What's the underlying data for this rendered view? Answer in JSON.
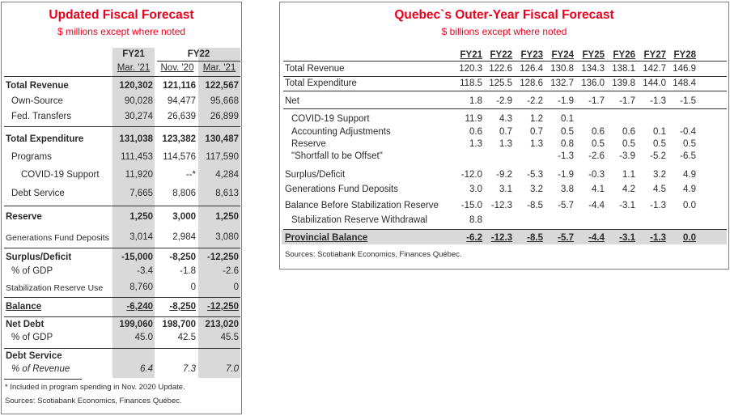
{
  "left": {
    "title": "Updated Fiscal Forecast",
    "subtitle": "$ millions except where noted",
    "group_fy21": "FY21",
    "group_fy22": "FY22",
    "cols": [
      "Mar. '21",
      "Nov. '20",
      "Mar. '21"
    ],
    "rows": [
      {
        "label": "Total Revenue",
        "values": [
          "120,302",
          "121,116",
          "122,567"
        ]
      },
      {
        "label": "Own-Source",
        "values": [
          "90,028",
          "94,477",
          "95,668"
        ]
      },
      {
        "label": "Fed. Transfers",
        "values": [
          "30,274",
          "26,639",
          "26,899"
        ]
      },
      {
        "label": "Total Expenditure",
        "values": [
          "131,038",
          "123,382",
          "130,487"
        ]
      },
      {
        "label": "Programs",
        "values": [
          "111,453",
          "114,576",
          "117,590"
        ]
      },
      {
        "label": "COVID-19 Support",
        "values": [
          "11,920",
          "--*",
          "4,284"
        ]
      },
      {
        "label": "Debt Service",
        "values": [
          "7,665",
          "8,806",
          "8,613"
        ]
      },
      {
        "label": "Reserve",
        "values": [
          "1,250",
          "3,000",
          "1,250"
        ]
      },
      {
        "label": "Generations Fund Deposits",
        "values": [
          "3,014",
          "2,984",
          "3,080"
        ]
      },
      {
        "label": "Surplus/Deficit",
        "values": [
          "-15,000",
          "-8,250",
          "-12,250"
        ]
      },
      {
        "label": "% of GDP",
        "values": [
          "-3.4",
          "-1.8",
          "-2.6"
        ]
      },
      {
        "label": "Stabilization Reserve Use",
        "values": [
          "8,760",
          "0",
          "0"
        ]
      },
      {
        "label": "Balance",
        "values": [
          "-6,240",
          "-8,250",
          "-12,250"
        ]
      },
      {
        "label": "Net Debt",
        "values": [
          "199,060",
          "198,700",
          "213,020"
        ]
      },
      {
        "label": "% of GDP",
        "values": [
          "45.0",
          "42.5",
          "45.5"
        ]
      },
      {
        "label": "Debt Service",
        "values": [
          "",
          "",
          ""
        ]
      },
      {
        "label": "% of Revenue",
        "values": [
          "6.4",
          "7.3",
          "7.0"
        ]
      }
    ],
    "footnote": "* Included in program spending in Nov. 2020 Update.",
    "sources": "Sources: Scotiabank Economics, Finances Québec."
  },
  "right": {
    "title": "Quebec`s Outer-Year Fiscal Forecast",
    "subtitle": "$ billions except where noted",
    "cols": [
      "FY21",
      "FY22",
      "FY23",
      "FY24",
      "FY25",
      "FY26",
      "FY27",
      "FY28"
    ],
    "rows": [
      {
        "label": "Total Revenue",
        "values": [
          "120.3",
          "122.6",
          "126.4",
          "130.8",
          "134.3",
          "138.1",
          "142.7",
          "146.9"
        ]
      },
      {
        "label": "Total Expenditure",
        "values": [
          "118.5",
          "125.5",
          "128.6",
          "132.7",
          "136.0",
          "139.8",
          "144.0",
          "148.4"
        ]
      },
      {
        "label": "Net",
        "values": [
          "1.8",
          "-2.9",
          "-2.2",
          "-1.9",
          "-1.7",
          "-1.7",
          "-1.3",
          "-1.5"
        ]
      },
      {
        "label": "COVID-19 Support",
        "values": [
          "11.9",
          "4.3",
          "1.2",
          "0.1",
          "",
          "",
          "",
          ""
        ]
      },
      {
        "label": "Accounting Adjustments",
        "values": [
          "0.6",
          "0.7",
          "0.7",
          "0.5",
          "0.6",
          "0.6",
          "0.1",
          "-0.4"
        ]
      },
      {
        "label": "Reserve",
        "values": [
          "1.3",
          "1.3",
          "1.3",
          "0.8",
          "0.5",
          "0.5",
          "0.5",
          "0.5"
        ]
      },
      {
        "label": "\"Shortfall to be Offset\"",
        "values": [
          "",
          "",
          "",
          "-1.3",
          "-2.6",
          "-3.9",
          "-5.2",
          "-6.5"
        ]
      },
      {
        "label": "Surplus/Deficit",
        "values": [
          "-12.0",
          "-9.2",
          "-5.3",
          "-1.9",
          "-0.3",
          "1.1",
          "3.2",
          "4.9"
        ]
      },
      {
        "label": "Generations Fund Deposits",
        "values": [
          "3.0",
          "3.1",
          "3.2",
          "3.8",
          "4.1",
          "4.2",
          "4.5",
          "4.9"
        ]
      },
      {
        "label": "Balance Before Stabilization Reserve",
        "values": [
          "-15.0",
          "-12.3",
          "-8.5",
          "-5.7",
          "-4.4",
          "-3.1",
          "-1.3",
          "0.0"
        ]
      },
      {
        "label": "Stabilization Reserve Withdrawal",
        "values": [
          "8.8",
          "",
          "",
          "",
          "",
          "",
          "",
          ""
        ]
      },
      {
        "label": "Provincial Balance",
        "values": [
          "-6.2",
          "-12.3",
          "-8.5",
          "-5.7",
          "-4.4",
          "-3.1",
          "-1.3",
          "0.0"
        ]
      }
    ],
    "sources": "Sources: Scotiabank Economics, Finances Québec."
  }
}
